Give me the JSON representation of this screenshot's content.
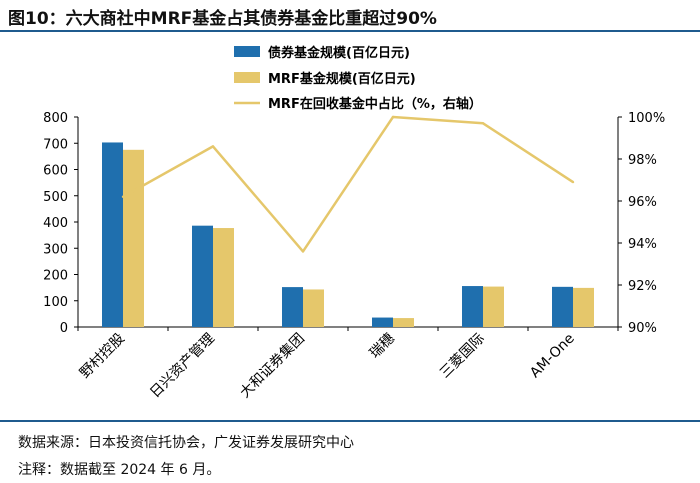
{
  "header": {
    "title": "图10：六大商社中MRF基金占其债券基金比重超过90%"
  },
  "footer": {
    "source": "数据来源：日本投资信托协会，广发证券发展研究中心",
    "note": "注释：数据截至 2024 年 6 月。"
  },
  "colors": {
    "bond": "#1f6fae",
    "mrf": "#e5c76b",
    "ratio": "#e5c76b",
    "rule": "#1f5b8e"
  },
  "chart_data": {
    "type": "bar",
    "title": "六大商社中MRF基金占其债券基金比重超过90%",
    "categories": [
      "野村控股",
      "日兴资产管理",
      "大和证券集团",
      "瑞穗",
      "三菱国际",
      "AM-One"
    ],
    "series": [
      {
        "name": "债券基金规模(百亿日元)",
        "kind": "bar",
        "axis": "left",
        "values": [
          703,
          386,
          152,
          36,
          156,
          153
        ]
      },
      {
        "name": "MRF基金规模(百亿日元)",
        "kind": "bar",
        "axis": "left",
        "values": [
          675,
          377,
          143,
          34,
          154,
          149
        ]
      },
      {
        "name": "MRF在回收基金中占比（%，右轴）",
        "kind": "line",
        "axis": "right",
        "values": [
          96.2,
          98.6,
          93.6,
          100.0,
          99.7,
          96.9
        ]
      }
    ],
    "y_left": {
      "min": 0,
      "max": 800,
      "step": 100,
      "ticks": [
        "0",
        "100",
        "200",
        "300",
        "400",
        "500",
        "600",
        "700",
        "800"
      ]
    },
    "y_right": {
      "min": 90,
      "max": 100,
      "step": 2,
      "ticks": [
        "90%",
        "92%",
        "94%",
        "96%",
        "98%",
        "100%"
      ]
    },
    "legend_position": "top-center",
    "grid": false
  }
}
